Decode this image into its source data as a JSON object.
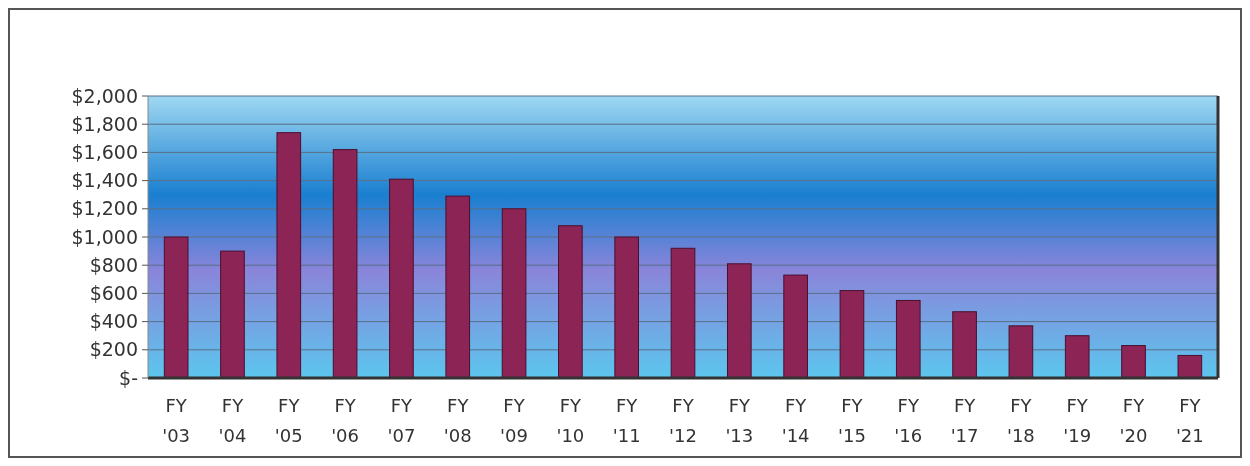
{
  "chart_data": {
    "type": "bar",
    "categories": [
      "FY '03",
      "FY '04",
      "FY '05",
      "FY '06",
      "FY '07",
      "FY '08",
      "FY '09",
      "FY '10",
      "FY '11",
      "FY '12",
      "FY '13",
      "FY '14",
      "FY '15",
      "FY '16",
      "FY '17",
      "FY '18",
      "FY '19",
      "FY '20",
      "FY '21"
    ],
    "values": [
      1000,
      900,
      1740,
      1620,
      1410,
      1290,
      1200,
      1080,
      1000,
      920,
      810,
      730,
      620,
      550,
      470,
      370,
      300,
      230,
      160
    ],
    "color": "#8c2556",
    "ylim": [
      0,
      2000
    ],
    "yticks": [
      {
        "value": 0,
        "label": "$-"
      },
      {
        "value": 200,
        "label": "$200"
      },
      {
        "value": 400,
        "label": "$400"
      },
      {
        "value": 600,
        "label": "$600"
      },
      {
        "value": 800,
        "label": "$800"
      },
      {
        "value": 1000,
        "label": "$1,000"
      },
      {
        "value": 1200,
        "label": "$1,200"
      },
      {
        "value": 1400,
        "label": "$1,400"
      },
      {
        "value": 1600,
        "label": "$1,600"
      },
      {
        "value": 1800,
        "label": "$1,800"
      },
      {
        "value": 2000,
        "label": "$2,000"
      }
    ],
    "grid": "y"
  }
}
